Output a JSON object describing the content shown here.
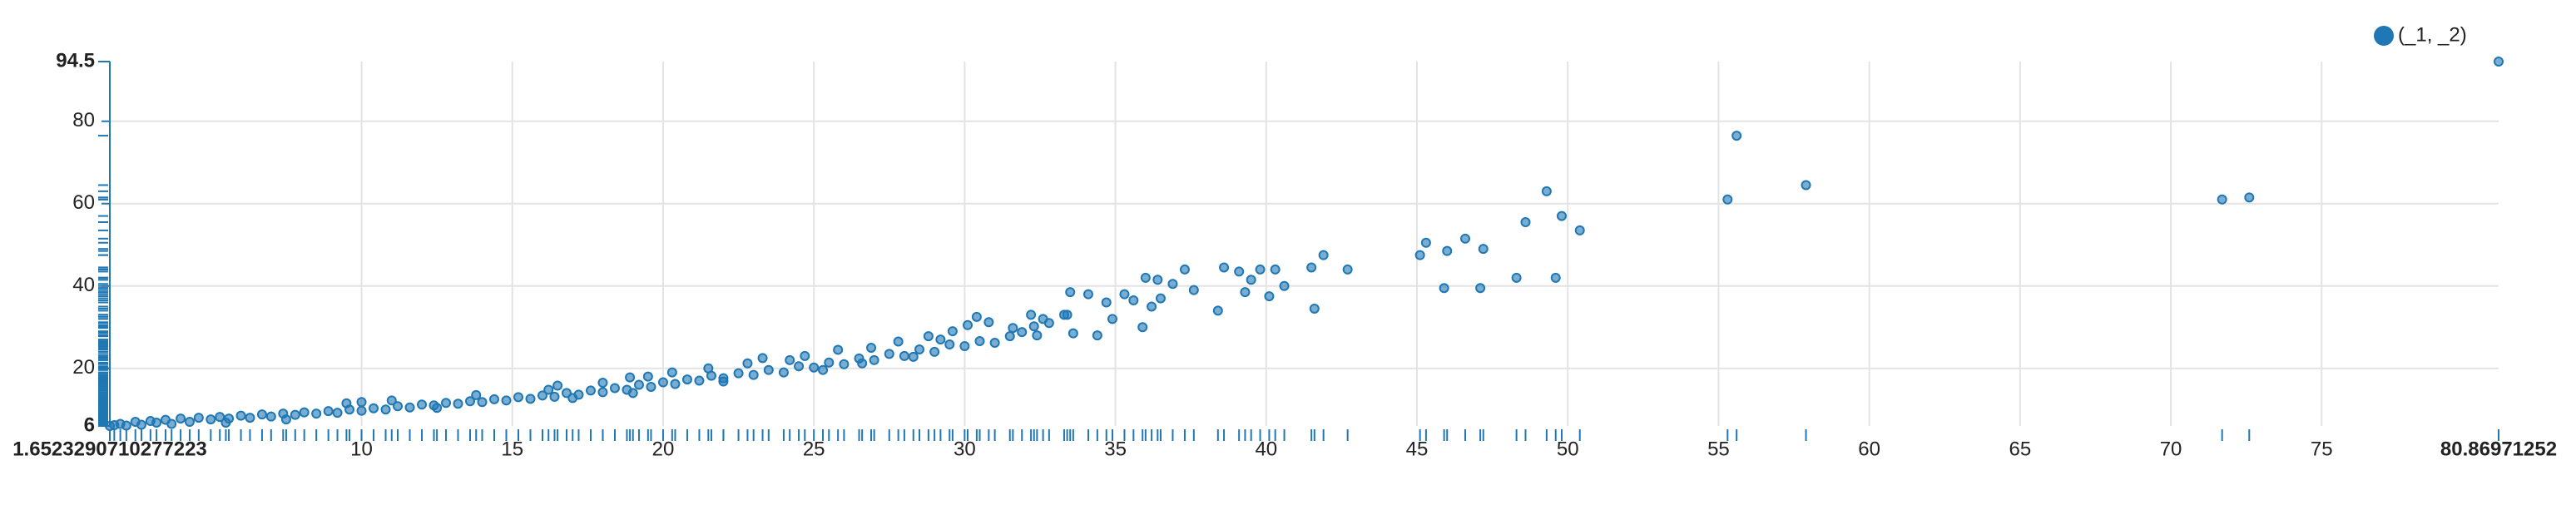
{
  "chart_data": {
    "type": "scatter",
    "xlim": [
      1.6523290710277223,
      80.86971252
    ],
    "ylim": [
      6,
      94.5
    ],
    "xticks": [
      1.6523290710277223,
      10,
      15,
      20,
      25,
      30,
      35,
      40,
      45,
      50,
      55,
      60,
      65,
      70,
      75,
      80.86971252
    ],
    "yticks": [
      6,
      20,
      40,
      60,
      80,
      94.5
    ],
    "grid": true,
    "legend": "top-right",
    "x": [
      1.6523290710277223,
      1.8,
      2.0,
      2.2,
      2.5,
      2.7,
      3.0,
      3.2,
      3.5,
      3.7,
      4.0,
      4.3,
      4.6,
      5.0,
      5.3,
      5.6,
      6.0,
      6.3,
      6.7,
      7.0,
      7.4,
      7.8,
      8.1,
      8.5,
      8.9,
      9.2,
      9.6,
      10.0,
      10.0,
      10.4,
      10.8,
      11.2,
      11.6,
      12.0,
      12.4,
      12.8,
      13.2,
      13.6,
      14.0,
      14.4,
      14.8,
      15.2,
      15.6,
      16.0,
      16.4,
      16.8,
      17.2,
      17.6,
      18.0,
      18.4,
      18.8,
      19.2,
      19.6,
      20.0,
      20.4,
      20.8,
      21.2,
      21.6,
      22.0,
      22.5,
      23.0,
      23.5,
      24.0,
      24.5,
      25.0,
      25.5,
      26.0,
      26.5,
      27.0,
      27.5,
      28.0,
      28.5,
      29.0,
      29.5,
      30.0,
      30.5,
      31.0,
      31.5,
      9.5,
      11.0,
      16.5,
      18.0,
      19.5,
      20.3,
      21.5,
      22.8,
      24.7,
      25.8,
      26.9,
      27.8,
      28.8,
      29.6,
      30.1,
      30.8,
      31.6,
      31.9,
      32.3,
      32.8,
      33.3,
      30.4,
      29.2,
      24.2,
      23.3,
      18.9,
      16.2,
      13.8,
      5.5,
      7.5,
      12.5,
      17.0,
      19.0,
      22.0,
      25.3,
      26.6,
      28.3,
      32.2,
      32.4,
      32.6,
      33.4,
      33.5,
      33.6,
      34.1,
      34.4,
      34.7,
      34.9,
      35.3,
      35.6,
      35.9,
      36.0,
      36.2,
      36.4,
      36.5,
      36.9,
      37.3,
      37.6,
      38.4,
      38.6,
      39.1,
      39.3,
      39.5,
      39.8,
      40.1,
      40.3,
      40.6,
      41.5,
      41.6,
      41.9,
      42.7,
      45.1,
      45.3,
      45.9,
      46.0,
      46.6,
      47.1,
      47.2,
      48.3,
      48.6,
      49.3,
      49.6,
      49.8,
      50.4,
      55.3,
      55.6,
      57.9,
      71.7,
      72.6,
      80.86971252
    ],
    "series": [
      {
        "name": "(_1, _2)",
        "color": "#1f77b4",
        "values": [
          6,
          6.2,
          6.5,
          6.1,
          7.0,
          6.3,
          7.2,
          6.8,
          7.5,
          6.5,
          7.8,
          7.0,
          8.0,
          7.6,
          8.2,
          7.8,
          8.5,
          8.0,
          8.8,
          8.3,
          9.0,
          8.7,
          9.3,
          9.0,
          9.6,
          9.2,
          10.0,
          9.7,
          11.8,
          10.3,
          10.0,
          10.8,
          10.5,
          11.2,
          11.0,
          11.6,
          11.4,
          12.0,
          11.8,
          12.5,
          12.2,
          13.0,
          12.6,
          13.4,
          13.1,
          14.0,
          13.6,
          14.6,
          14.2,
          15.2,
          14.8,
          16.0,
          15.5,
          16.6,
          16.2,
          17.3,
          17.0,
          18.2,
          17.6,
          18.8,
          18.4,
          19.6,
          19.0,
          20.5,
          20.2,
          21.4,
          21.0,
          22.4,
          22.0,
          23.5,
          23.0,
          24.6,
          24.0,
          25.8,
          25.4,
          26.6,
          26.2,
          27.8,
          11.5,
          12.2,
          15.8,
          16.5,
          18.0,
          19.0,
          20.0,
          21.2,
          23.0,
          24.5,
          25.0,
          26.5,
          27.8,
          29.0,
          30.5,
          31.2,
          29.8,
          28.8,
          30.2,
          31.0,
          33.0,
          32.5,
          27.0,
          22.0,
          22.5,
          17.8,
          14.8,
          13.5,
          6.8,
          7.6,
          10.4,
          12.8,
          14.0,
          16.8,
          19.6,
          21.2,
          22.8,
          33.0,
          28.0,
          32.0,
          33.0,
          38.5,
          28.5,
          38.0,
          28.0,
          36.0,
          32.0,
          38.0,
          36.5,
          30.0,
          42.0,
          35.0,
          41.5,
          37.0,
          40.5,
          44.0,
          39.0,
          34.0,
          44.5,
          43.5,
          38.5,
          41.5,
          44.0,
          37.5,
          44.0,
          40.0,
          44.5,
          34.5,
          47.5,
          44.0,
          47.5,
          50.5,
          39.5,
          48.5,
          51.5,
          39.5,
          49.0,
          42.0,
          55.5,
          63.0,
          42.0,
          57.0,
          53.5,
          61.0,
          76.5,
          64.5,
          61.0,
          61.5,
          94.5
        ]
      }
    ]
  }
}
